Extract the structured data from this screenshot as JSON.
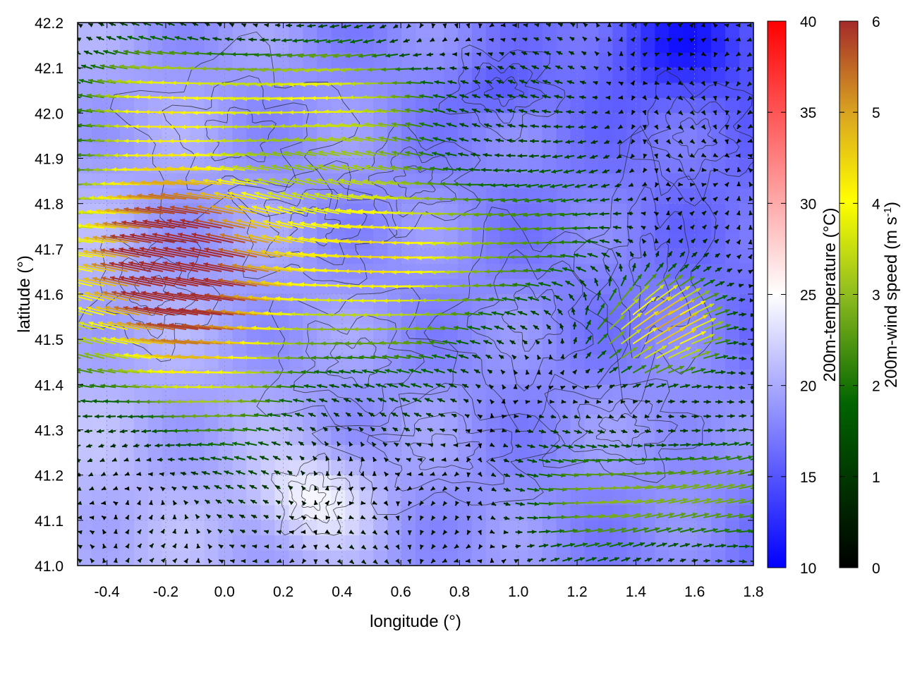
{
  "chart_data": {
    "type": "heatmap",
    "overlays": [
      "wind-vector-arrows",
      "terrain-contours"
    ],
    "xlabel": "longitude (°)",
    "ylabel": "latitude (°)",
    "xlim": [
      -0.5,
      1.8
    ],
    "ylim": [
      41.0,
      42.2
    ],
    "xticks": [
      "-0.4",
      "-0.2",
      "0.0",
      "0.2",
      "0.4",
      "0.6",
      "0.8",
      "1.0",
      "1.2",
      "1.4",
      "1.6",
      "1.8"
    ],
    "yticks": [
      "41.0",
      "41.1",
      "41.2",
      "41.3",
      "41.4",
      "41.5",
      "41.6",
      "41.7",
      "41.8",
      "41.9",
      "42.0",
      "42.1",
      "42.2"
    ],
    "grid": true,
    "temperature_colorbar": {
      "label": "200m-temperature (°C)",
      "range": [
        10,
        40
      ],
      "ticks": [
        "10",
        "15",
        "20",
        "25",
        "30",
        "35",
        "40"
      ],
      "colors": [
        "#0000ff",
        "#ffffff",
        "#ff0000"
      ]
    },
    "wind_colorbar": {
      "label_main": "200m-wind speed (m s",
      "label_sup": "-1",
      "label_end": ")",
      "range": [
        0,
        6
      ],
      "ticks": [
        "0",
        "1",
        "2",
        "3",
        "4",
        "5",
        "6"
      ],
      "colors": [
        "#000000",
        "#006400",
        "#8fbc1f",
        "#ffff00",
        "#daa520",
        "#a52a2a"
      ]
    },
    "temperature_field_description": "mostly 15-22 °C, coolest (≈12-14 °C) in the north-east, warmest (≈22-25 °C) near lon 0.1-0.5, lat 41.1-41.2",
    "wind_regions": [
      {
        "region": "west (lon -0.5 to 0.6, lat 41.3 to 42.0)",
        "speed": 6,
        "direction": "from east-south-east"
      },
      {
        "region": "central (lon 0.5 to 1.3, lat 41.4 to 41.9)",
        "speed": 3,
        "direction": "from east"
      },
      {
        "region": "east (lon 1.2 to 1.8, lat 41.4 to 41.7)",
        "speed": 5.5,
        "direction": "from south-west"
      },
      {
        "region": "south-east (lon 1.0 to 1.8, lat 41.0 to 41.3)",
        "speed": 3,
        "direction": "from west"
      },
      {
        "region": "north-east (lon 1.3 to 1.8, lat 41.8 to 42.2)",
        "speed": 1,
        "direction": "weak, variable"
      }
    ]
  }
}
